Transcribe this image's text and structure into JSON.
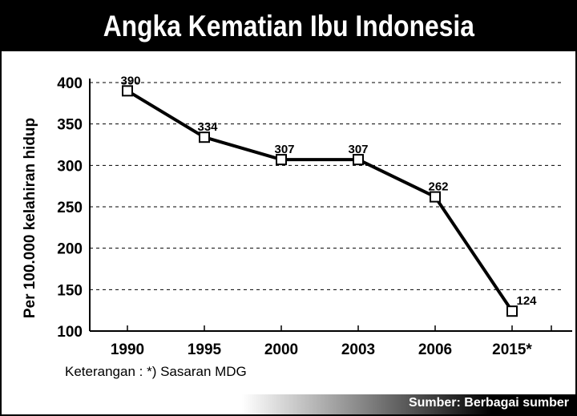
{
  "header": {
    "title": "Angka Kematian Ibu Indonesia"
  },
  "chart_data": {
    "type": "line",
    "title": "Angka Kematian Ibu Indonesia",
    "categories": [
      "1990",
      "1995",
      "2000",
      "2003",
      "2006",
      "2015*"
    ],
    "series": [
      {
        "values": [
          390,
          334,
          307,
          307,
          262,
          124
        ]
      }
    ],
    "data_labels": [
      "390",
      "334",
      "307",
      "307",
      "262",
      "124"
    ],
    "ylabel": "Per 100.000 kelahiran hidup",
    "xlabel": "",
    "ylim": [
      100,
      400
    ],
    "yticks": [
      "400",
      "350",
      "300",
      "250",
      "200",
      "150",
      "100"
    ],
    "grid": "dashed horizontal",
    "line_color": "#000000",
    "marker": "hollow-square"
  },
  "footer": {
    "note": "Keterangan : *) Sasaran MDG",
    "source": "Sumber: Berbagai sumber"
  }
}
